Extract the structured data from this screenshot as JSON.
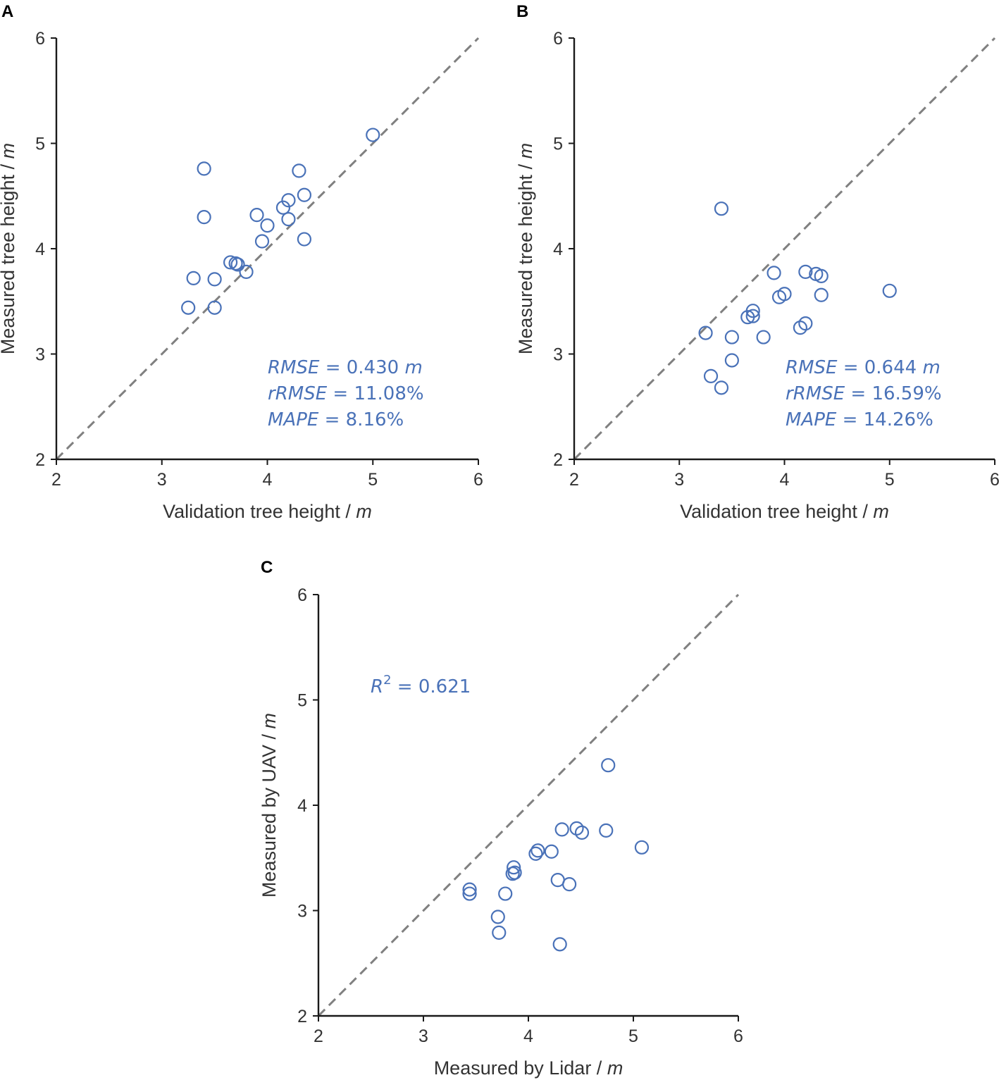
{
  "colors": {
    "points": "#4a72b8",
    "annotation": "#4a72b8",
    "axes": "#1a1a1a",
    "reference": "#808080"
  },
  "chart_data": [
    {
      "panel": "A",
      "type": "scatter",
      "xlabel": "Validation tree height / ",
      "xlabel_unit": "m",
      "ylabel": "Measured tree height / ",
      "ylabel_unit": "m",
      "xlim": [
        2,
        6
      ],
      "ylim": [
        2,
        6
      ],
      "xticks": [
        "2",
        "3",
        "4",
        "5",
        "6"
      ],
      "yticks": [
        "2",
        "3",
        "4",
        "5",
        "6"
      ],
      "reference_line": "1:1",
      "x": [
        3.4,
        3.4,
        4.3,
        4.35,
        5.0,
        4.2,
        4.15,
        3.9,
        4.2,
        4.0,
        3.95,
        4.35,
        3.65,
        3.7,
        3.72,
        3.8,
        3.3,
        3.5,
        3.25,
        3.5
      ],
      "y": [
        4.76,
        4.3,
        4.74,
        4.51,
        5.08,
        4.46,
        4.39,
        4.32,
        4.28,
        4.22,
        4.07,
        4.09,
        3.87,
        3.86,
        3.85,
        3.78,
        3.72,
        3.71,
        3.44,
        3.44
      ],
      "annotations": [
        {
          "name": "RMSE",
          "text": " = 0.430 ",
          "unit": "m"
        },
        {
          "name": "rRMSE",
          "text": " = 11.08%",
          "unit": ""
        },
        {
          "name": "MAPE",
          "text": " = 8.16%",
          "unit": ""
        }
      ]
    },
    {
      "panel": "B",
      "type": "scatter",
      "xlabel": "Validation tree height / ",
      "xlabel_unit": "m",
      "ylabel": "Measured tree height / ",
      "ylabel_unit": "m",
      "xlim": [
        2,
        6
      ],
      "ylim": [
        2,
        6
      ],
      "xticks": [
        "2",
        "3",
        "4",
        "5",
        "6"
      ],
      "yticks": [
        "2",
        "3",
        "4",
        "5",
        "6"
      ],
      "reference_line": "1:1",
      "x": [
        3.4,
        3.9,
        4.2,
        4.3,
        4.35,
        5.0,
        4.0,
        3.95,
        4.35,
        3.7,
        3.7,
        3.65,
        4.2,
        4.15,
        3.25,
        3.5,
        3.8,
        3.5,
        3.3,
        3.4
      ],
      "y": [
        4.38,
        3.77,
        3.78,
        3.76,
        3.74,
        3.6,
        3.57,
        3.54,
        3.56,
        3.41,
        3.36,
        3.35,
        3.29,
        3.25,
        3.2,
        3.16,
        3.16,
        2.94,
        2.79,
        2.68
      ],
      "annotations": [
        {
          "name": "RMSE",
          "text": " = 0.644 ",
          "unit": "m"
        },
        {
          "name": "rRMSE",
          "text": " = 16.59%",
          "unit": ""
        },
        {
          "name": "MAPE",
          "text": " = 14.26%",
          "unit": ""
        }
      ]
    },
    {
      "panel": "C",
      "type": "scatter",
      "xlabel": "Measured by Lidar / ",
      "xlabel_unit": "m",
      "ylabel": "Measured by UAV / ",
      "ylabel_unit": "m",
      "xlim": [
        2,
        6
      ],
      "ylim": [
        2,
        6
      ],
      "xticks": [
        "2",
        "3",
        "4",
        "5",
        "6"
      ],
      "yticks": [
        "2",
        "3",
        "4",
        "5",
        "6"
      ],
      "reference_line": "1:1",
      "x": [
        4.76,
        4.32,
        4.46,
        4.51,
        4.74,
        5.08,
        4.22,
        4.09,
        4.07,
        3.86,
        3.87,
        3.85,
        4.28,
        4.39,
        3.44,
        3.44,
        3.78,
        3.71,
        3.72,
        4.3
      ],
      "y": [
        4.38,
        3.77,
        3.78,
        3.74,
        3.76,
        3.6,
        3.56,
        3.57,
        3.54,
        3.41,
        3.36,
        3.35,
        3.29,
        3.25,
        3.2,
        3.16,
        3.16,
        2.94,
        2.79,
        2.68
      ],
      "annotations": [
        {
          "name": "R",
          "sup": "2",
          "text": " = 0.621"
        }
      ]
    }
  ]
}
